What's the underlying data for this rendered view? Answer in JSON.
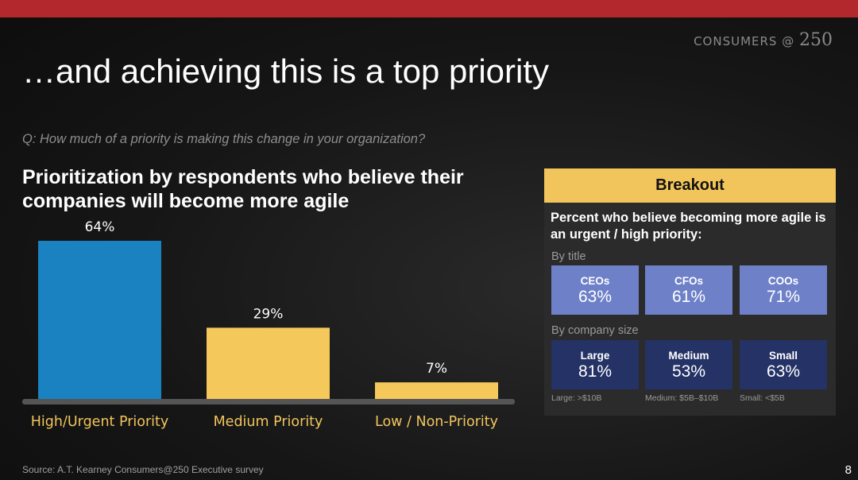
{
  "header": {
    "brand_text": "CONSUMERS",
    "brand_at": "@",
    "brand_num": "250",
    "title": "…and achieving this is a top priority",
    "question": "Q: How much of a priority is making this change in your organization?",
    "subtitle": "Prioritization by respondents who believe their companies will become more agile"
  },
  "colors": {
    "accent_red": "#b3282d",
    "bar_blue": "#1a82c0",
    "bar_yellow": "#f5c85c",
    "tile_light_blue": "#6e80c8",
    "tile_navy": "#243266"
  },
  "chart_data": {
    "type": "bar",
    "categories": [
      "High/Urgent Priority",
      "Medium Priority",
      "Low / Non-Priority"
    ],
    "values": [
      64,
      29,
      7
    ],
    "value_labels": [
      "64%",
      "29%",
      "7%"
    ],
    "bar_colors": [
      "#1a82c0",
      "#f5c85c",
      "#f5c85c"
    ],
    "ylim": [
      0,
      70
    ],
    "grid": false
  },
  "breakout": {
    "header": "Breakout",
    "description": "Percent  who believe becoming more agile is an urgent / high priority:",
    "by_title_label": "By title",
    "by_title": [
      {
        "label": "CEOs",
        "value": "63%"
      },
      {
        "label": "CFOs",
        "value": "61%"
      },
      {
        "label": "COOs",
        "value": "71%"
      }
    ],
    "by_size_label": "By company size",
    "by_size": [
      {
        "label": "Large",
        "value": "81%",
        "note": "Large: >$10B"
      },
      {
        "label": "Medium",
        "value": "53%",
        "note": "Medium: $5B–$10B"
      },
      {
        "label": "Small",
        "value": "63%",
        "note": "Small: <$5B"
      }
    ]
  },
  "footer": {
    "source": "Source: A.T. Kearney Consumers@250 Executive survey",
    "page": "8"
  }
}
